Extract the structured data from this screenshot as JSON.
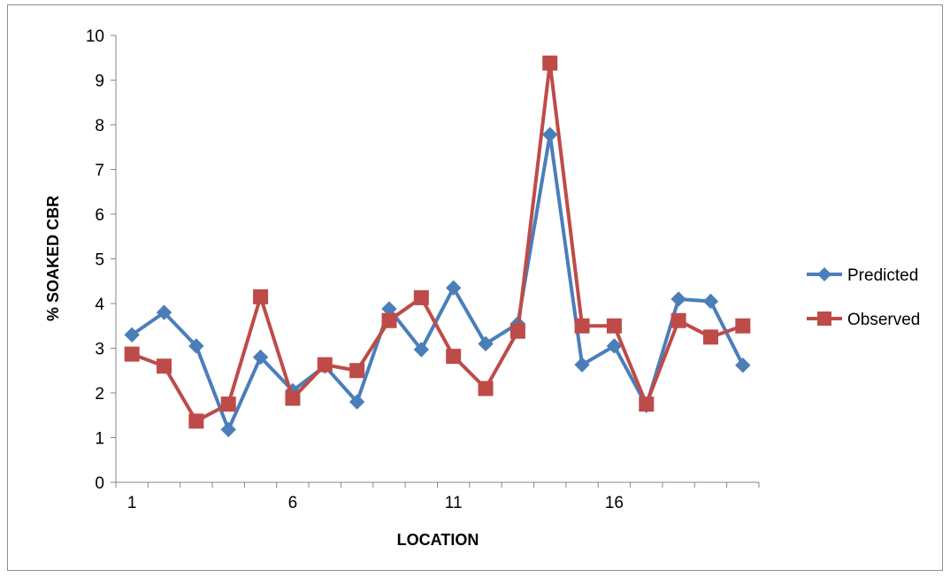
{
  "chart_data": {
    "type": "line",
    "title": "",
    "xlabel": "LOCATION",
    "ylabel": "% SOAKED CBR",
    "ylim": [
      0,
      10
    ],
    "y_ticks": [
      0,
      1,
      2,
      3,
      4,
      5,
      6,
      7,
      8,
      9,
      10
    ],
    "x_tick_labels": [
      "1",
      "6",
      "11",
      "16"
    ],
    "x": [
      1,
      2,
      3,
      4,
      5,
      6,
      7,
      8,
      9,
      10,
      11,
      12,
      13,
      14,
      15,
      16,
      17,
      18,
      19,
      20
    ],
    "grid": false,
    "legend_position": "right",
    "series": [
      {
        "name": "Predicted",
        "color": "#4a7ebb",
        "marker": "diamond",
        "values": [
          3.3,
          3.8,
          3.05,
          1.18,
          2.8,
          2.05,
          2.6,
          1.8,
          3.88,
          2.97,
          4.35,
          3.1,
          3.55,
          7.78,
          2.63,
          3.05,
          1.72,
          4.1,
          4.05,
          2.62
        ]
      },
      {
        "name": "Observed",
        "color": "#be4b48",
        "marker": "square",
        "values": [
          2.87,
          2.6,
          1.37,
          1.75,
          4.15,
          1.88,
          2.63,
          2.5,
          3.62,
          4.13,
          2.82,
          2.1,
          3.38,
          9.38,
          3.5,
          3.5,
          1.75,
          3.62,
          3.25,
          3.5
        ]
      }
    ]
  }
}
